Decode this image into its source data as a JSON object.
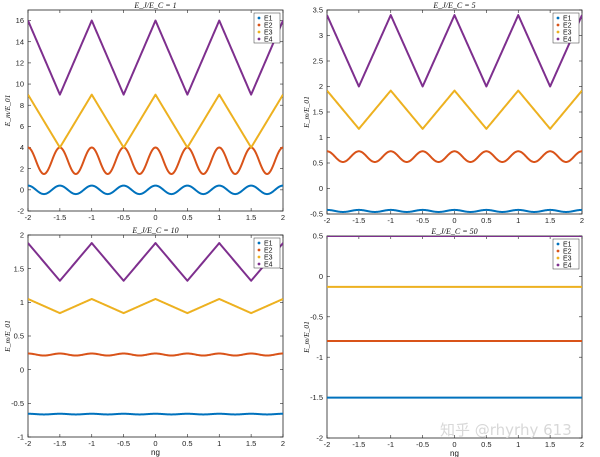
{
  "watermark": "知乎 @rhyrhy 613",
  "chart_data": [
    {
      "type": "line",
      "title": "E_J/E_C = 1",
      "xlabel": "",
      "ylabel": "E_m/E_01",
      "xlim": [
        -2,
        2
      ],
      "ylim": [
        -2,
        17
      ],
      "xticks": [
        -2,
        -1.5,
        -1,
        -0.5,
        0,
        0.5,
        1,
        1.5,
        2
      ],
      "yticks": [
        -2,
        0,
        2,
        4,
        6,
        8,
        10,
        12,
        14,
        16
      ],
      "legend": "top-right",
      "series": [
        {
          "name": "E1",
          "color": "#0072BD",
          "shape": "band0",
          "center": 0.0,
          "amplitude": 0.4
        },
        {
          "name": "E2",
          "color": "#D95319",
          "shape": "band1",
          "min": 1.5,
          "max": 4.0
        },
        {
          "name": "E3",
          "color": "#EDB120",
          "shape": "band2",
          "min": 4.0,
          "max": 9.0
        },
        {
          "name": "E4",
          "color": "#7E2F8E",
          "shape": "band3",
          "min": 9.0,
          "max": 16.0
        }
      ]
    },
    {
      "type": "line",
      "title": "E_J/E_C = 5",
      "xlabel": "",
      "ylabel": "E_m/E_01",
      "xlim": [
        -2,
        2
      ],
      "ylim": [
        -0.5,
        3.5
      ],
      "xticks": [
        -2,
        -1.5,
        -1,
        -0.5,
        0,
        0.5,
        1,
        1.5,
        2
      ],
      "yticks": [
        -0.5,
        0,
        0.5,
        1,
        1.5,
        2,
        2.5,
        3,
        3.5
      ],
      "legend": "top-right",
      "series": [
        {
          "name": "E1",
          "color": "#0072BD",
          "shape": "band0",
          "center": -0.44,
          "amplitude": 0.02
        },
        {
          "name": "E2",
          "color": "#D95319",
          "shape": "band1",
          "min": 0.52,
          "max": 0.73
        },
        {
          "name": "E3",
          "color": "#EDB120",
          "shape": "band2",
          "min": 1.17,
          "max": 1.92
        },
        {
          "name": "E4",
          "color": "#7E2F8E",
          "shape": "band3",
          "min": 2.0,
          "max": 3.4
        }
      ]
    },
    {
      "type": "line",
      "title": "E_J/E_C = 10",
      "xlabel": "ng",
      "ylabel": "E_m/E_01",
      "xlim": [
        -2,
        2
      ],
      "ylim": [
        -1,
        2
      ],
      "xticks": [
        -2,
        -1.5,
        -1,
        -0.5,
        0,
        0.5,
        1,
        1.5,
        2
      ],
      "yticks": [
        -1,
        -0.5,
        0,
        0.5,
        1,
        1.5,
        2
      ],
      "legend": "top-right",
      "series": [
        {
          "name": "E1",
          "color": "#0072BD",
          "shape": "band0",
          "center": -0.66,
          "amplitude": 0.005
        },
        {
          "name": "E2",
          "color": "#D95319",
          "shape": "band1",
          "min": 0.21,
          "max": 0.24
        },
        {
          "name": "E3",
          "color": "#EDB120",
          "shape": "band2",
          "min": 0.84,
          "max": 1.05
        },
        {
          "name": "E4",
          "color": "#7E2F8E",
          "shape": "band3",
          "min": 1.32,
          "max": 1.88
        }
      ]
    },
    {
      "type": "line",
      "title": "E_J/E_C = 50",
      "xlabel": "ng",
      "ylabel": "E_m/E_01",
      "xlim": [
        -2,
        2
      ],
      "ylim": [
        -2,
        0.5
      ],
      "xticks": [
        -2,
        -1.5,
        -1,
        -0.5,
        0,
        0.5,
        1,
        1.5,
        2
      ],
      "yticks": [
        -2,
        -1.5,
        -1,
        -0.5,
        0,
        0.5
      ],
      "legend": "top-right",
      "series": [
        {
          "name": "E1",
          "color": "#0072BD",
          "shape": "band0",
          "center": -1.5,
          "amplitude": 0.0
        },
        {
          "name": "E2",
          "color": "#D95319",
          "shape": "band1",
          "min": -0.8,
          "max": -0.8
        },
        {
          "name": "E3",
          "color": "#EDB120",
          "shape": "band2",
          "min": -0.13,
          "max": -0.13
        },
        {
          "name": "E4",
          "color": "#7E2F8E",
          "shape": "band3",
          "min": 0.5,
          "max": 0.5
        }
      ]
    }
  ]
}
